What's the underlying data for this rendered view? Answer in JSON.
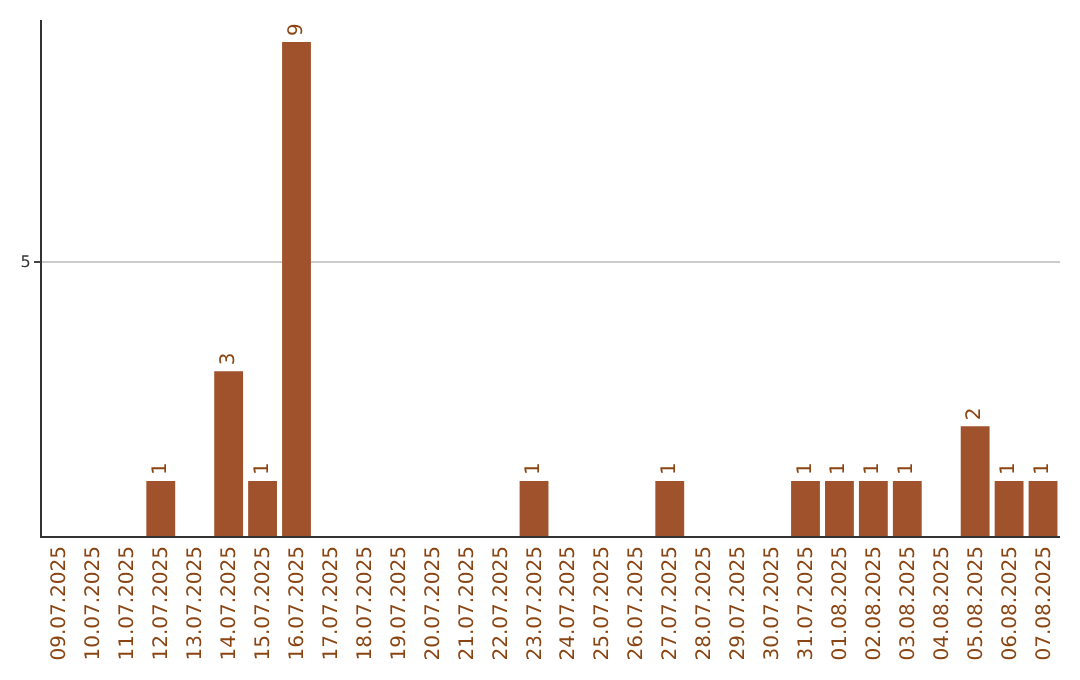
{
  "chart_data": {
    "type": "bar",
    "categories": [
      "09.07.2025",
      "10.07.2025",
      "11.07.2025",
      "12.07.2025",
      "13.07.2025",
      "14.07.2025",
      "15.07.2025",
      "16.07.2025",
      "17.07.2025",
      "18.07.2025",
      "19.07.2025",
      "20.07.2025",
      "21.07.2025",
      "22.07.2025",
      "23.07.2025",
      "24.07.2025",
      "25.07.2025",
      "26.07.2025",
      "27.07.2025",
      "28.07.2025",
      "29.07.2025",
      "30.07.2025",
      "31.07.2025",
      "01.08.2025",
      "02.08.2025",
      "03.08.2025",
      "04.08.2025",
      "05.08.2025",
      "06.08.2025",
      "07.08.2025"
    ],
    "values": [
      0,
      0,
      0,
      1,
      0,
      3,
      1,
      9,
      0,
      0,
      0,
      0,
      0,
      0,
      1,
      0,
      0,
      0,
      1,
      0,
      0,
      0,
      1,
      1,
      1,
      1,
      0,
      2,
      1,
      1
    ],
    "value_labels": [
      null,
      null,
      null,
      "1",
      null,
      "3",
      "1",
      "9",
      null,
      null,
      null,
      null,
      null,
      null,
      "1",
      null,
      null,
      null,
      "1",
      null,
      null,
      null,
      "1",
      "1",
      "1",
      "1",
      null,
      "2",
      "1",
      "1"
    ],
    "color": "#a0522d",
    "ylim": [
      0,
      9.4
    ],
    "yticks": [
      5
    ],
    "grid": "y",
    "legend": false
  }
}
